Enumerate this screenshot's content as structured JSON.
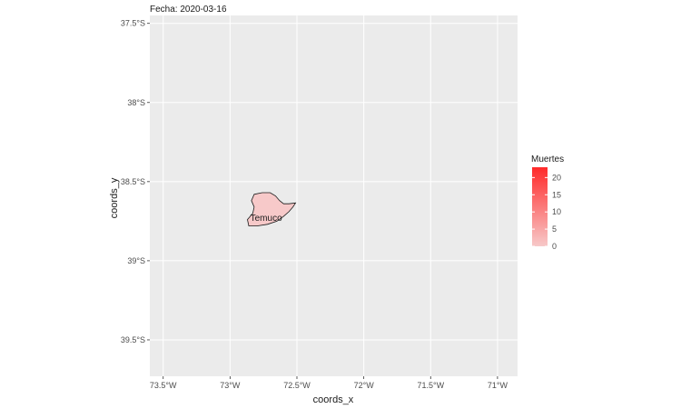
{
  "chart_data": {
    "type": "map",
    "title": "Fecha: 2020-03-16",
    "xlabel": "coords_x",
    "ylabel": "coords_y",
    "xlim": [
      -73.6,
      -70.85
    ],
    "ylim": [
      -39.73,
      -37.45
    ],
    "x_ticks": [
      {
        "value": -73.5,
        "label": "73.5°W"
      },
      {
        "value": -73.0,
        "label": "73°W"
      },
      {
        "value": -72.5,
        "label": "72.5°W"
      },
      {
        "value": -72.0,
        "label": "72°W"
      },
      {
        "value": -71.5,
        "label": "71.5°W"
      },
      {
        "value": -71.0,
        "label": "71°W"
      }
    ],
    "y_ticks": [
      {
        "value": -37.5,
        "label": "37.5°S"
      },
      {
        "value": -38.0,
        "label": "38°S"
      },
      {
        "value": -38.5,
        "label": "38.5°S"
      },
      {
        "value": -39.0,
        "label": "39°S"
      },
      {
        "value": -39.5,
        "label": "39.5°S"
      }
    ],
    "grid": true,
    "panel_color": "#ebebeb",
    "grid_color": "#ffffff",
    "legend": {
      "title": "Muertes",
      "position": "right",
      "min": 0,
      "max": 23,
      "low_color": "#f7c9c9",
      "high_color": "#ff2a2a",
      "breaks": [
        "0",
        "5",
        "10",
        "15",
        "20"
      ]
    },
    "regions": [
      {
        "name": "Temuco",
        "muertes": 0,
        "label_lon": -72.73,
        "label_lat": -38.73,
        "polygon": [
          [
            -72.82,
            -38.58
          ],
          [
            -72.76,
            -38.57
          ],
          [
            -72.7,
            -38.57
          ],
          [
            -72.66,
            -38.59
          ],
          [
            -72.63,
            -38.62
          ],
          [
            -72.6,
            -38.64
          ],
          [
            -72.56,
            -38.64
          ],
          [
            -72.51,
            -38.635
          ],
          [
            -72.53,
            -38.66
          ],
          [
            -72.56,
            -38.69
          ],
          [
            -72.6,
            -38.72
          ],
          [
            -72.65,
            -38.75
          ],
          [
            -72.72,
            -38.77
          ],
          [
            -72.8,
            -38.78
          ],
          [
            -72.86,
            -38.78
          ],
          [
            -72.87,
            -38.74
          ],
          [
            -72.83,
            -38.7
          ],
          [
            -72.82,
            -38.66
          ],
          [
            -72.84,
            -38.62
          ]
        ]
      }
    ]
  }
}
